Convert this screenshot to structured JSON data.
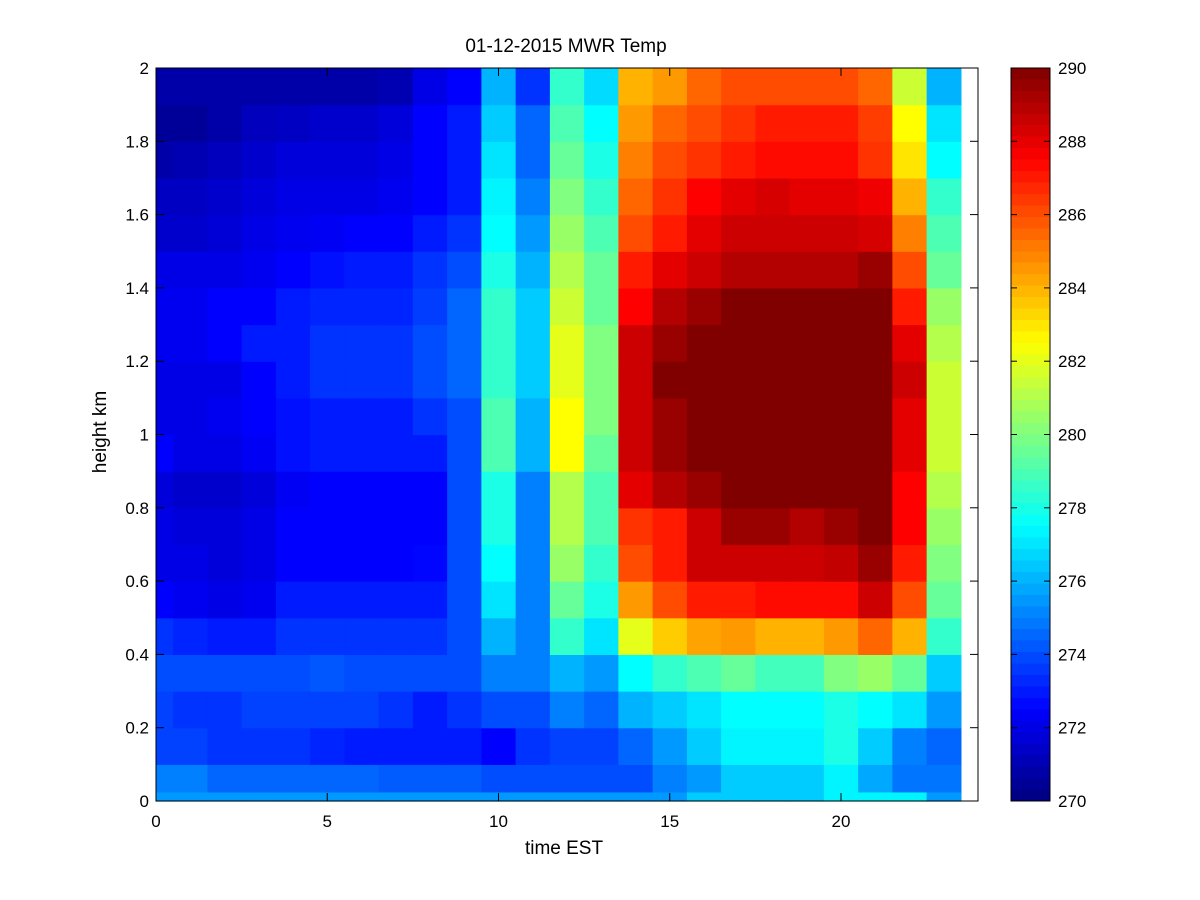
{
  "chart_data": {
    "type": "heatmap",
    "title": "01-12-2015 MWR Temp",
    "xlabel": "time EST",
    "ylabel": "height km",
    "xlim": [
      0,
      24
    ],
    "ylim": [
      0,
      2
    ],
    "xticks": [
      0,
      5,
      10,
      15,
      20
    ],
    "yticks": [
      0,
      0.2,
      0.4,
      0.6,
      0.8,
      1,
      1.2,
      1.4,
      1.6,
      1.8,
      2
    ],
    "colorbar": {
      "colormap": "jet",
      "clim": [
        270,
        290
      ],
      "ticks": [
        270,
        272,
        274,
        276,
        278,
        280,
        282,
        284,
        286,
        288,
        290
      ]
    },
    "grid": false,
    "hours": [
      0,
      1,
      2,
      3,
      4,
      5,
      6,
      7,
      8,
      9,
      10,
      11,
      12,
      13,
      14,
      15,
      16,
      17,
      18,
      19,
      20,
      21,
      22,
      23
    ],
    "heights_km": [
      0,
      0.05,
      0.15,
      0.25,
      0.35,
      0.45,
      0.55,
      0.65,
      0.75,
      0.85,
      0.95,
      1.05,
      1.15,
      1.25,
      1.35,
      1.45,
      1.55,
      1.65,
      1.75,
      1.85,
      1.95
    ],
    "values": [
      [
        275.5,
        275.5,
        275.5,
        275.5,
        275.5,
        275.5,
        275.5,
        275.5,
        275.5,
        275.5,
        275.5,
        275.5,
        275.5,
        275.5,
        275.5,
        275.5,
        276.5,
        276.5,
        276.5,
        276.5,
        277.3,
        277.3,
        277.3,
        275.5
      ],
      [
        275.0,
        275.0,
        274.5,
        274.5,
        274.5,
        274.5,
        274.5,
        274.3,
        274.3,
        274.3,
        274.0,
        274.0,
        274.0,
        274.0,
        274.0,
        275.0,
        275.5,
        276.5,
        276.5,
        276.5,
        277.3,
        275.8,
        274.8,
        274.8
      ],
      [
        273.8,
        273.8,
        273.5,
        273.5,
        273.5,
        273.2,
        273.0,
        273.0,
        273.0,
        273.0,
        272.5,
        273.5,
        273.8,
        273.8,
        274.5,
        275.5,
        276.5,
        277.3,
        277.3,
        277.3,
        278.0,
        276.5,
        275.0,
        274.5
      ],
      [
        273.8,
        273.5,
        273.5,
        273.8,
        273.8,
        273.8,
        273.8,
        273.5,
        273.0,
        273.5,
        274.0,
        274.0,
        275.0,
        274.5,
        276.0,
        276.5,
        277.0,
        277.5,
        277.5,
        277.5,
        278.0,
        277.5,
        277.0,
        275.5
      ],
      [
        274.0,
        274.0,
        274.0,
        274.0,
        274.0,
        274.2,
        274.0,
        274.0,
        274.0,
        274.0,
        275.0,
        275.0,
        276.0,
        275.5,
        277.5,
        278.5,
        279.0,
        279.5,
        278.8,
        278.8,
        280.0,
        280.5,
        279.5,
        276.5
      ],
      [
        273.5,
        273.2,
        273.0,
        273.0,
        273.5,
        273.5,
        273.5,
        273.5,
        273.5,
        274.0,
        276.0,
        275.0,
        278.5,
        277.0,
        282.0,
        283.5,
        284.3,
        284.5,
        284.0,
        284.0,
        284.5,
        285.5,
        284.0,
        278.5
      ],
      [
        272.5,
        272.2,
        272.0,
        272.2,
        273.0,
        273.0,
        273.0,
        273.0,
        273.0,
        274.0,
        277.0,
        275.0,
        279.5,
        278.0,
        284.5,
        286.0,
        287.0,
        287.0,
        287.3,
        287.3,
        287.3,
        288.5,
        286.0,
        279.5
      ],
      [
        272.0,
        272.0,
        271.8,
        272.0,
        272.5,
        272.5,
        272.5,
        272.5,
        272.6,
        274.0,
        277.5,
        275.0,
        280.5,
        278.5,
        286.0,
        287.0,
        288.5,
        288.5,
        288.5,
        288.5,
        288.7,
        289.5,
        287.0,
        280.0
      ],
      [
        272.0,
        271.8,
        271.8,
        272.0,
        272.5,
        272.5,
        272.5,
        272.5,
        272.5,
        274.0,
        278.0,
        275.0,
        281.0,
        279.0,
        286.5,
        287.0,
        288.5,
        289.5,
        289.5,
        289.0,
        289.5,
        290.0,
        287.5,
        280.5
      ],
      [
        271.8,
        271.5,
        271.5,
        271.8,
        272.3,
        272.5,
        272.5,
        272.5,
        272.5,
        274.0,
        278.0,
        275.0,
        281.0,
        279.0,
        288.0,
        289.0,
        289.5,
        290.0,
        290.0,
        290.0,
        290.0,
        290.0,
        287.5,
        281.0
      ],
      [
        272.5,
        272.0,
        272.0,
        272.3,
        272.8,
        273.0,
        273.0,
        273.0,
        273.0,
        274.0,
        279.0,
        276.0,
        282.5,
        279.5,
        288.5,
        289.5,
        290.0,
        290.0,
        290.0,
        290.0,
        290.0,
        290.0,
        288.0,
        281.5
      ],
      [
        272.0,
        272.0,
        272.2,
        272.5,
        272.8,
        273.0,
        273.0,
        273.0,
        273.5,
        274.0,
        279.0,
        276.0,
        282.5,
        280.0,
        288.5,
        289.5,
        290.0,
        290.0,
        290.0,
        290.0,
        290.0,
        290.0,
        288.0,
        281.5
      ],
      [
        272.0,
        272.0,
        272.0,
        272.5,
        273.0,
        273.5,
        273.5,
        273.5,
        274.0,
        274.5,
        278.5,
        276.5,
        282.0,
        280.0,
        288.5,
        290.0,
        290.0,
        290.0,
        290.0,
        290.0,
        290.0,
        290.0,
        288.5,
        281.5
      ],
      [
        272.2,
        272.2,
        272.5,
        273.0,
        273.0,
        273.5,
        273.5,
        273.5,
        274.0,
        274.5,
        278.5,
        276.5,
        282.0,
        280.0,
        288.5,
        289.5,
        290.0,
        290.0,
        290.0,
        290.0,
        290.0,
        290.0,
        288.0,
        281.0
      ],
      [
        272.2,
        272.2,
        272.5,
        272.5,
        273.0,
        273.2,
        273.2,
        273.2,
        273.7,
        274.5,
        278.5,
        276.5,
        281.5,
        279.5,
        287.5,
        289.0,
        289.5,
        290.0,
        290.0,
        290.0,
        290.0,
        290.0,
        287.0,
        280.5
      ],
      [
        272.0,
        272.0,
        272.0,
        272.2,
        272.5,
        272.8,
        273.0,
        273.0,
        273.5,
        274.0,
        278.0,
        276.0,
        281.0,
        279.5,
        287.0,
        288.0,
        288.5,
        289.0,
        289.0,
        289.0,
        289.0,
        289.5,
        286.0,
        279.5
      ],
      [
        271.5,
        271.5,
        271.7,
        272.0,
        272.2,
        272.3,
        272.5,
        272.5,
        273.0,
        273.5,
        277.5,
        275.5,
        280.5,
        279.0,
        286.0,
        287.0,
        288.0,
        288.5,
        288.5,
        288.5,
        288.5,
        288.3,
        285.0,
        279.0
      ],
      [
        271.3,
        271.3,
        271.5,
        271.8,
        272.0,
        272.0,
        272.0,
        272.2,
        272.5,
        273.0,
        277.3,
        275.0,
        280.0,
        278.5,
        285.5,
        286.5,
        287.5,
        288.0,
        288.3,
        288.0,
        288.0,
        287.8,
        284.0,
        278.5
      ],
      [
        270.8,
        271.0,
        271.2,
        271.5,
        271.8,
        271.8,
        271.8,
        272.0,
        272.5,
        273.0,
        277.0,
        274.5,
        279.5,
        278.0,
        285.0,
        286.0,
        286.5,
        287.0,
        287.3,
        287.3,
        287.3,
        286.5,
        283.0,
        277.5
      ],
      [
        270.5,
        270.5,
        270.8,
        271.2,
        271.3,
        271.5,
        271.5,
        271.8,
        272.5,
        273.0,
        276.5,
        274.5,
        279.0,
        277.5,
        284.5,
        285.5,
        286.0,
        286.5,
        287.0,
        287.0,
        287.0,
        286.3,
        282.5,
        277.0
      ],
      [
        270.8,
        270.8,
        270.8,
        270.8,
        270.8,
        270.8,
        270.8,
        271.0,
        272.0,
        272.5,
        276.0,
        273.5,
        278.5,
        276.8,
        284.0,
        284.5,
        285.5,
        286.0,
        286.0,
        286.0,
        286.0,
        285.5,
        281.5,
        276.0
      ]
    ]
  }
}
